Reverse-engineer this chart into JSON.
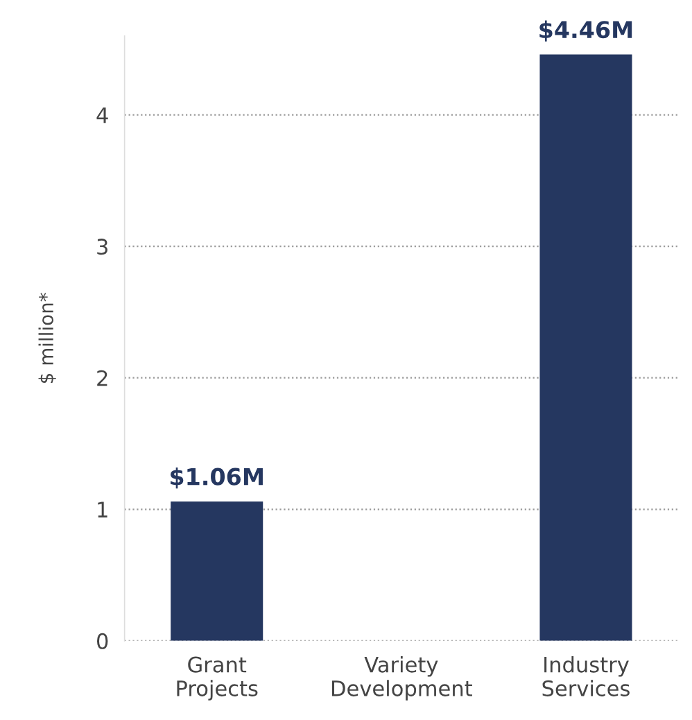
{
  "chart_data": {
    "type": "bar",
    "ylabel": "$ million*",
    "categories": [
      "Grant\nProjects",
      "Variety\nDevelopment",
      "Industry\nServices"
    ],
    "values": [
      1.06,
      null,
      4.46
    ],
    "value_labels": [
      "$1.06M",
      null,
      "$4.46M"
    ],
    "color": "#253760",
    "ylim": [
      0,
      4.6
    ],
    "yticks": [
      0,
      1,
      2,
      3,
      4
    ],
    "grid": "y"
  }
}
